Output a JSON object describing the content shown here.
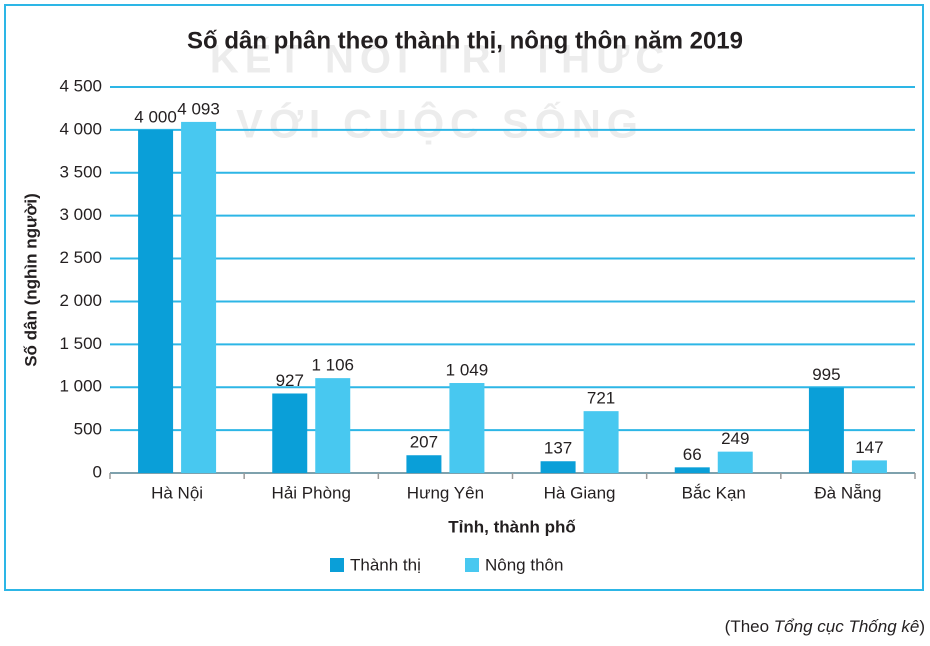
{
  "chart_data": {
    "type": "bar",
    "title": "Số dân phân theo thành thị, nông thôn năm 2019",
    "watermark": [
      "KẾT NỐI TRI THỨC",
      "VỚI CUỘC SỐNG"
    ],
    "y_label": "Số dân (nghìn người)",
    "x_label": "Tỉnh, thành phố",
    "categories": [
      "Hà Nội",
      "Hải Phòng",
      "Hưng Yên",
      "Hà Giang",
      "Bắc Kạn",
      "Đà Nẵng"
    ],
    "series": [
      {
        "name": "Thành thị",
        "color": "#0a9fd8",
        "values": [
          4000,
          927,
          207,
          137,
          66,
          995
        ],
        "value_labels": [
          "4 000",
          "927",
          "207",
          "137",
          "66",
          "995"
        ]
      },
      {
        "name": "Nông thôn",
        "color": "#48c8f0",
        "values": [
          4093,
          1106,
          1049,
          721,
          249,
          147
        ],
        "value_labels": [
          "4 093",
          "1 106",
          "1 049",
          "721",
          "249",
          "147"
        ]
      }
    ],
    "ylim": [
      0,
      4500
    ],
    "yticks": [
      0,
      500,
      {
        "value": 1000,
        "label": "1 000"
      },
      {
        "value": 1500,
        "label": "1 500"
      },
      {
        "value": 2000,
        "label": "2 000"
      },
      {
        "value": 2500,
        "label": "2 500"
      },
      {
        "value": 3000,
        "label": "3 000"
      },
      {
        "value": 3500,
        "label": "3 500"
      },
      {
        "value": 4000,
        "label": "4 000"
      },
      {
        "value": 4500,
        "label": "4 500"
      }
    ],
    "grid": true,
    "grid_color": "#2db6e6",
    "source": {
      "prefix": "(Theo ",
      "italic": "Tổng cục Thống kê",
      "suffix": ")"
    }
  }
}
